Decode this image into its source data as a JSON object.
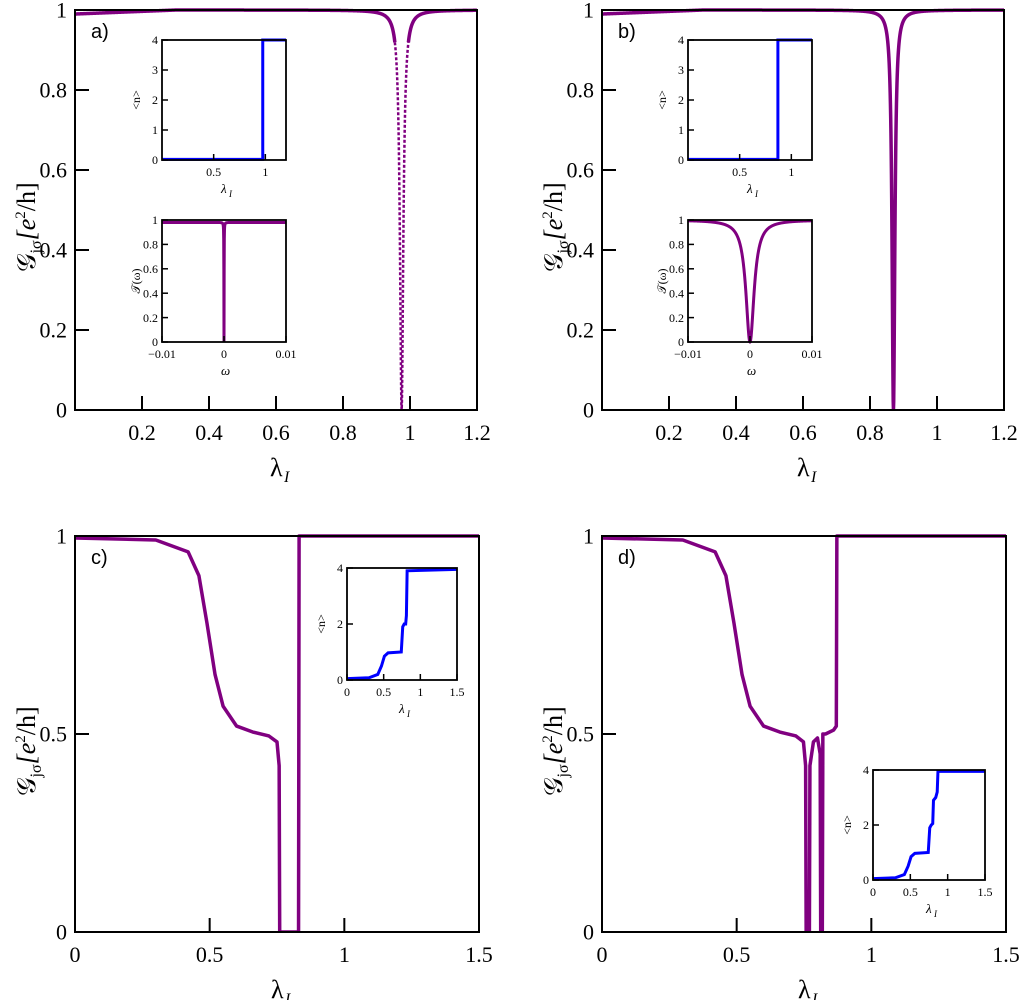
{
  "colors": {
    "conductance": "#800080",
    "occupation": "#0000ff",
    "axis": "#000000"
  },
  "chart_data": [
    {
      "panel": "a)",
      "type": "line",
      "xlabel": "λ",
      "xlabel_sub": "I",
      "ylabel": "𝒢",
      "ylabel_sub": "jσ",
      "ylabel_unit_open": "[e",
      "ylabel_unit_sup": "2",
      "ylabel_unit_close": "/h]",
      "xlim": [
        0,
        1.2
      ],
      "ylim": [
        0,
        1
      ],
      "xticks": [
        0.2,
        0.4,
        0.6,
        0.8,
        1,
        1.2
      ],
      "xtick_labels": [
        "0.2",
        "0.4",
        "0.6",
        "0.8",
        "1",
        "1.2"
      ],
      "yticks": [
        0,
        0.2,
        0.4,
        0.6,
        0.8,
        1
      ],
      "ytick_labels": [
        "0",
        "0.2",
        "0.4",
        "0.6",
        "0.8",
        "1"
      ],
      "series": [
        {
          "style": "dip",
          "dashed": true,
          "color": "#800080",
          "base": 0.99,
          "top": 1.0,
          "x0": 0.975,
          "drop": 1.0,
          "width": 0.006
        }
      ],
      "insets": [
        {
          "kind": "occupation",
          "ylabel": "<n>",
          "xlabel": "λ",
          "xlabel_sub": "I",
          "xlim": [
            0,
            1.2
          ],
          "ylim": [
            0,
            4
          ],
          "xticks": [
            0.5,
            1
          ],
          "xtick_labels": [
            "0.5",
            "1"
          ],
          "yticks": [
            0,
            1,
            2,
            3,
            4
          ],
          "ytick_labels": [
            "0",
            "1",
            "2",
            "3",
            "4"
          ],
          "steps": [
            [
              0,
              0.02
            ],
            [
              0.975,
              4
            ]
          ],
          "smooth": 0.003
        },
        {
          "kind": "transmission",
          "ylabel": "𝒯(ω)",
          "xlabel": "ω",
          "xlim": [
            -0.01,
            0.01
          ],
          "ylim": [
            0,
            1
          ],
          "xticks": [
            -0.01,
            0,
            0.01
          ],
          "xtick_labels": [
            "−0.01",
            "0",
            "0.01"
          ],
          "yticks": [
            0,
            0.2,
            0.4,
            0.6,
            0.8,
            1
          ],
          "ytick_labels": [
            "0",
            "0.2",
            "0.4",
            "0.6",
            "0.8",
            "1"
          ],
          "dip": {
            "x0": 0,
            "width": 2e-05,
            "base": 0.98
          }
        }
      ]
    },
    {
      "panel": "b)",
      "type": "line",
      "xlabel": "λ",
      "xlabel_sub": "I",
      "ylabel": "𝒢",
      "ylabel_sub": "jσ",
      "ylabel_unit_open": "[e",
      "ylabel_unit_sup": "2",
      "ylabel_unit_close": "/h]",
      "xlim": [
        0,
        1.2
      ],
      "ylim": [
        0,
        1
      ],
      "xticks": [
        0.2,
        0.4,
        0.6,
        0.8,
        1,
        1.2
      ],
      "xtick_labels": [
        "0.2",
        "0.4",
        "0.6",
        "0.8",
        "1",
        "1.2"
      ],
      "yticks": [
        0,
        0.2,
        0.4,
        0.6,
        0.8,
        1
      ],
      "ytick_labels": [
        "0",
        "0.2",
        "0.4",
        "0.6",
        "0.8",
        "1"
      ],
      "series": [
        {
          "style": "dip",
          "dashed": false,
          "color": "#800080",
          "base": 0.99,
          "top": 1.0,
          "x0": 0.87,
          "drop": 1.0,
          "width": 0.005
        }
      ],
      "insets": [
        {
          "kind": "occupation",
          "ylabel": "<n>",
          "xlabel": "λ",
          "xlabel_sub": "I",
          "xlim": [
            0,
            1.2
          ],
          "ylim": [
            0,
            4
          ],
          "xticks": [
            0.5,
            1
          ],
          "xtick_labels": [
            "0.5",
            "1"
          ],
          "yticks": [
            0,
            1,
            2,
            3,
            4
          ],
          "ytick_labels": [
            "0",
            "1",
            "2",
            "3",
            "4"
          ],
          "steps": [
            [
              0,
              0.02
            ],
            [
              0.87,
              4
            ]
          ],
          "smooth": 0.003
        },
        {
          "kind": "transmission",
          "ylabel": "𝒯(ω)",
          "xlabel": "ω",
          "xlim": [
            -0.01,
            0.01
          ],
          "ylim": [
            0,
            1
          ],
          "xticks": [
            -0.01,
            0,
            0.01
          ],
          "xtick_labels": [
            "−0.01",
            "0",
            "0.01"
          ],
          "yticks": [
            0,
            0.2,
            0.4,
            0.6,
            0.8,
            1
          ],
          "ytick_labels": [
            "0",
            "0.2",
            "0.4",
            "0.6",
            "0.8",
            "1"
          ],
          "dip": {
            "x0": 0,
            "width": 0.0008,
            "base": 1.0
          }
        }
      ]
    },
    {
      "panel": "c)",
      "type": "line",
      "xlabel": "λ",
      "xlabel_sub": "I",
      "ylabel": "𝒢",
      "ylabel_sub": "jσ",
      "ylabel_unit_open": "[e",
      "ylabel_unit_sup": "2",
      "ylabel_unit_close": "/h]",
      "xlim": [
        0,
        1.5
      ],
      "ylim": [
        0,
        1
      ],
      "xticks": [
        0,
        0.5,
        1,
        1.5
      ],
      "xtick_labels": [
        "0",
        "0.5",
        "1",
        "1.5"
      ],
      "yticks": [
        0,
        0.5,
        1
      ],
      "ytick_labels": [
        "0",
        "0.5",
        "1"
      ],
      "series": [
        {
          "style": "twostep",
          "color": "#800080",
          "points": [
            [
              0,
              0.995
            ],
            [
              0.3,
              0.99
            ],
            [
              0.42,
              0.96
            ],
            [
              0.46,
              0.9
            ],
            [
              0.49,
              0.78
            ],
            [
              0.52,
              0.65
            ],
            [
              0.55,
              0.57
            ],
            [
              0.6,
              0.52
            ],
            [
              0.66,
              0.505
            ],
            [
              0.72,
              0.495
            ],
            [
              0.75,
              0.48
            ],
            [
              0.758,
              0.42
            ],
            [
              0.76,
              0.0
            ],
            [
              0.83,
              0.0
            ],
            [
              0.832,
              1.0
            ],
            [
              1.5,
              1.0
            ]
          ]
        }
      ],
      "insets": [
        {
          "kind": "occupation",
          "ylabel": "<n>",
          "xlabel": "λ",
          "xlabel_sub": "I",
          "xlim": [
            0,
            1.5
          ],
          "ylim": [
            0,
            4
          ],
          "xticks": [
            0,
            0.5,
            1,
            1.5
          ],
          "xtick_labels": [
            "0",
            "0.5",
            "1",
            "1.5"
          ],
          "yticks": [
            0,
            2,
            4
          ],
          "ytick_labels": [
            "0",
            "2",
            "4"
          ],
          "points": [
            [
              0,
              0.05
            ],
            [
              0.3,
              0.08
            ],
            [
              0.42,
              0.2
            ],
            [
              0.47,
              0.5
            ],
            [
              0.51,
              0.85
            ],
            [
              0.56,
              0.97
            ],
            [
              0.74,
              1.0
            ],
            [
              0.76,
              1.9
            ],
            [
              0.78,
              2.0
            ],
            [
              0.8,
              2.0
            ],
            [
              0.81,
              2.3
            ],
            [
              0.82,
              3.9
            ],
            [
              1.5,
              3.95
            ]
          ]
        }
      ]
    },
    {
      "panel": "d)",
      "type": "line",
      "xlabel": "λ",
      "xlabel_sub": "I",
      "ylabel": "𝒢",
      "ylabel_sub": "jσ",
      "ylabel_unit_open": "[e",
      "ylabel_unit_sup": "2",
      "ylabel_unit_close": "/h]",
      "xlim": [
        0,
        1.5
      ],
      "ylim": [
        0,
        1
      ],
      "xticks": [
        0,
        0.5,
        1,
        1.5
      ],
      "xtick_labels": [
        "0",
        "0.5",
        "1",
        "1.5"
      ],
      "yticks": [
        0,
        0.5,
        1
      ],
      "ytick_labels": [
        "0",
        "0.5",
        "1"
      ],
      "series": [
        {
          "style": "threestep",
          "color": "#800080",
          "points": [
            [
              0,
              0.995
            ],
            [
              0.3,
              0.99
            ],
            [
              0.42,
              0.96
            ],
            [
              0.46,
              0.9
            ],
            [
              0.49,
              0.78
            ],
            [
              0.52,
              0.65
            ],
            [
              0.55,
              0.57
            ],
            [
              0.6,
              0.52
            ],
            [
              0.66,
              0.505
            ],
            [
              0.72,
              0.495
            ],
            [
              0.748,
              0.48
            ],
            [
              0.756,
              0.42
            ],
            [
              0.758,
              0.0
            ],
            [
              0.77,
              0.0
            ],
            [
              0.772,
              0.42
            ],
            [
              0.785,
              0.48
            ],
            [
              0.8,
              0.49
            ],
            [
              0.81,
              0.45
            ],
            [
              0.812,
              0.0
            ],
            [
              0.818,
              0.0
            ],
            [
              0.82,
              0.5
            ],
            [
              0.83,
              0.5
            ],
            [
              0.86,
              0.51
            ],
            [
              0.87,
              0.52
            ],
            [
              0.872,
              1.0
            ],
            [
              1.5,
              1.0
            ]
          ]
        }
      ],
      "insets": [
        {
          "kind": "occupation",
          "ylabel": "<n>",
          "xlabel": "λ",
          "xlabel_sub": "I",
          "xlim": [
            0,
            1.5
          ],
          "ylim": [
            0,
            4
          ],
          "xticks": [
            0,
            0.5,
            1,
            1.5
          ],
          "xtick_labels": [
            "0",
            "0.5",
            "1",
            "1.5"
          ],
          "yticks": [
            0,
            2,
            4
          ],
          "ytick_labels": [
            "0",
            "2",
            "4"
          ],
          "points": [
            [
              0,
              0.05
            ],
            [
              0.3,
              0.08
            ],
            [
              0.42,
              0.2
            ],
            [
              0.47,
              0.5
            ],
            [
              0.51,
              0.85
            ],
            [
              0.56,
              0.97
            ],
            [
              0.74,
              1.0
            ],
            [
              0.76,
              1.9
            ],
            [
              0.78,
              2.0
            ],
            [
              0.8,
              2.05
            ],
            [
              0.81,
              2.9
            ],
            [
              0.84,
              3.0
            ],
            [
              0.86,
              3.2
            ],
            [
              0.87,
              3.95
            ],
            [
              1.5,
              3.95
            ]
          ]
        }
      ]
    }
  ]
}
